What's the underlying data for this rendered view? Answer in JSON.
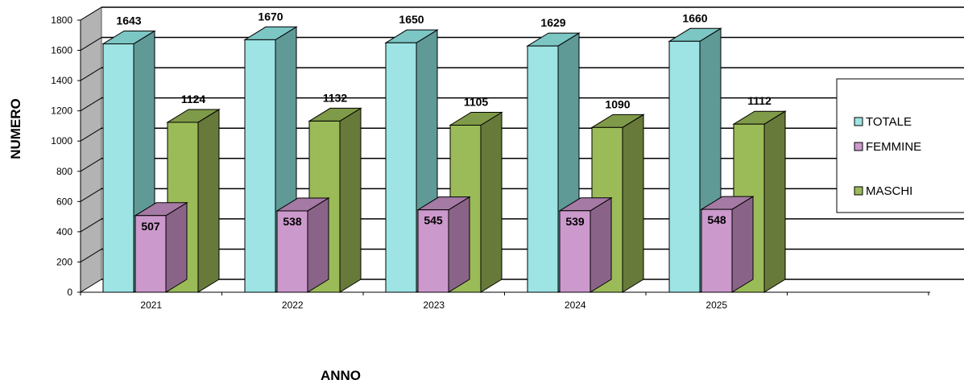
{
  "chart_data": {
    "type": "bar",
    "categories": [
      "2021",
      "2022",
      "2023",
      "2024",
      "2025"
    ],
    "series": [
      {
        "name": "TOTALE",
        "values": [
          1643,
          1670,
          1650,
          1629,
          1660
        ],
        "color": "#9ee4e4",
        "side_color": "#5f9a97",
        "top_color": "#7cc6c4"
      },
      {
        "name": "FEMMINE",
        "values": [
          507,
          538,
          545,
          539,
          548
        ],
        "color": "#cc99cc",
        "side_color": "#8a6488",
        "top_color": "#a57aa4"
      },
      {
        "name": "MASCHI",
        "values": [
          1124,
          1132,
          1105,
          1090,
          1112
        ],
        "color": "#9bbb59",
        "side_color": "#677a3a",
        "top_color": "#7f9a48"
      }
    ],
    "xlabel": "ANNO",
    "ylabel": "NUMERO",
    "ylim": [
      0,
      1800
    ],
    "yticks": [
      0,
      200,
      400,
      600,
      800,
      1000,
      1200,
      1400,
      1600,
      1800
    ],
    "grid": true,
    "legend_position": "right",
    "three_d": true
  }
}
